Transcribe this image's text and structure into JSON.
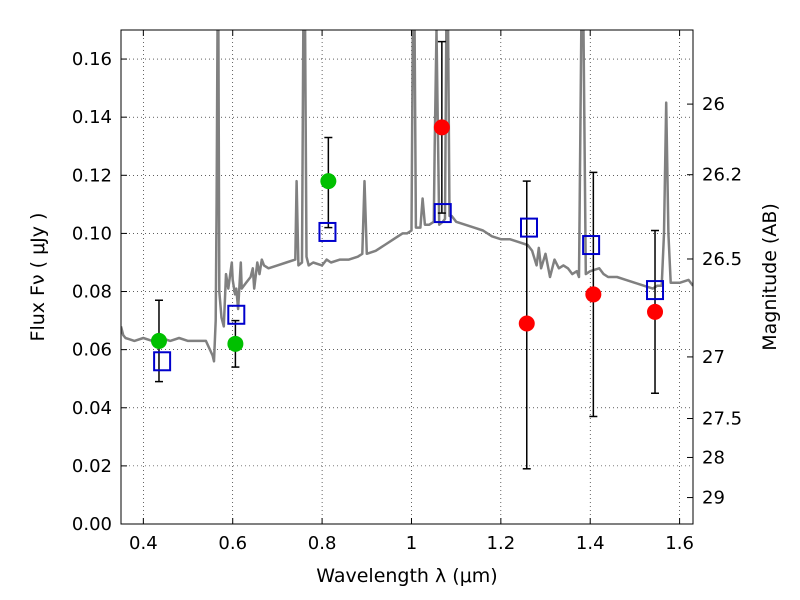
{
  "chart_data": {
    "type": "scatter",
    "xlabel": "Wavelength  λ (μm)",
    "ylabel": "Flux  Fν  ( μJy )",
    "y2label": "Magnitude (AB)",
    "xlim": [
      0.35,
      1.63
    ],
    "ylim": [
      0.0,
      0.17
    ],
    "grid": true,
    "x_ticks": [
      0.4,
      0.6,
      0.8,
      1.0,
      1.2,
      1.4,
      1.6
    ],
    "x_tick_labels": [
      "0.4",
      "0.6",
      "0.8",
      "1",
      "1.2",
      "1.4",
      "1.6"
    ],
    "y_ticks": [
      0.0,
      0.02,
      0.04,
      0.06,
      0.08,
      0.1,
      0.12,
      0.14,
      0.16
    ],
    "y_tick_labels": [
      "0.00",
      "0.02",
      "0.04",
      "0.06",
      "0.08",
      "0.10",
      "0.12",
      "0.14",
      "0.16"
    ],
    "y2_ticks": [
      {
        "label": "26",
        "flux": 0.1445
      },
      {
        "label": "26.2",
        "flux": 0.1202
      },
      {
        "label": "26.5",
        "flux": 0.0912
      },
      {
        "label": "27",
        "flux": 0.0575
      },
      {
        "label": "27.5",
        "flux": 0.0363
      },
      {
        "label": "28",
        "flux": 0.0229
      },
      {
        "label": "29",
        "flux": 0.0091
      }
    ],
    "series": [
      {
        "kind": "points_errorbars",
        "color": "#00c000",
        "points": [
          {
            "x": 0.435,
            "y": 0.063,
            "lo": 0.049,
            "hi": 0.077
          },
          {
            "x": 0.606,
            "y": 0.062,
            "lo": 0.054,
            "hi": 0.07
          },
          {
            "x": 0.814,
            "y": 0.118,
            "lo": 0.102,
            "hi": 0.133
          }
        ]
      },
      {
        "kind": "points_errorbars",
        "color": "#ff0000",
        "points": [
          {
            "x": 1.068,
            "y": 0.1365,
            "lo": 0.107,
            "hi": 0.166
          },
          {
            "x": 1.258,
            "y": 0.069,
            "lo": 0.019,
            "hi": 0.118
          },
          {
            "x": 1.407,
            "y": 0.079,
            "lo": 0.037,
            "hi": 0.121
          },
          {
            "x": 1.545,
            "y": 0.073,
            "lo": 0.045,
            "hi": 0.101
          }
        ]
      },
      {
        "kind": "model_squares",
        "color": "#0000cc",
        "points": [
          {
            "x": 0.442,
            "y": 0.056
          },
          {
            "x": 0.608,
            "y": 0.072
          },
          {
            "x": 0.812,
            "y": 0.1005
          },
          {
            "x": 1.07,
            "y": 0.107
          },
          {
            "x": 1.263,
            "y": 0.102
          },
          {
            "x": 1.402,
            "y": 0.096
          },
          {
            "x": 1.545,
            "y": 0.0805
          }
        ]
      },
      {
        "kind": "spectrum_line",
        "color": "#808080",
        "points": [
          [
            0.35,
            0.068
          ],
          [
            0.355,
            0.065
          ],
          [
            0.36,
            0.064
          ],
          [
            0.38,
            0.063
          ],
          [
            0.4,
            0.064
          ],
          [
            0.42,
            0.063
          ],
          [
            0.44,
            0.064
          ],
          [
            0.46,
            0.063
          ],
          [
            0.48,
            0.064
          ],
          [
            0.5,
            0.063
          ],
          [
            0.52,
            0.063
          ],
          [
            0.54,
            0.063
          ],
          [
            0.555,
            0.058
          ],
          [
            0.558,
            0.056
          ],
          [
            0.562,
            0.07
          ],
          [
            0.564,
            0.11
          ],
          [
            0.566,
            0.17
          ],
          [
            0.568,
            0.17
          ],
          [
            0.57,
            0.08
          ],
          [
            0.575,
            0.071
          ],
          [
            0.58,
            0.068
          ],
          [
            0.585,
            0.086
          ],
          [
            0.59,
            0.081
          ],
          [
            0.598,
            0.09
          ],
          [
            0.6,
            0.084
          ],
          [
            0.605,
            0.079
          ],
          [
            0.608,
            0.081
          ],
          [
            0.612,
            0.074
          ],
          [
            0.618,
            0.09
          ],
          [
            0.62,
            0.081
          ],
          [
            0.63,
            0.083
          ],
          [
            0.64,
            0.085
          ],
          [
            0.645,
            0.088
          ],
          [
            0.648,
            0.081
          ],
          [
            0.655,
            0.09
          ],
          [
            0.66,
            0.086
          ],
          [
            0.665,
            0.091
          ],
          [
            0.67,
            0.089
          ],
          [
            0.68,
            0.088
          ],
          [
            0.7,
            0.089
          ],
          [
            0.72,
            0.09
          ],
          [
            0.74,
            0.091
          ],
          [
            0.743,
            0.118
          ],
          [
            0.747,
            0.089
          ],
          [
            0.755,
            0.09
          ],
          [
            0.758,
            0.17
          ],
          [
            0.762,
            0.17
          ],
          [
            0.765,
            0.092
          ],
          [
            0.77,
            0.089
          ],
          [
            0.78,
            0.09
          ],
          [
            0.8,
            0.089
          ],
          [
            0.81,
            0.091
          ],
          [
            0.82,
            0.09
          ],
          [
            0.84,
            0.091
          ],
          [
            0.86,
            0.091
          ],
          [
            0.88,
            0.092
          ],
          [
            0.89,
            0.093
          ],
          [
            0.895,
            0.118
          ],
          [
            0.9,
            0.093
          ],
          [
            0.92,
            0.094
          ],
          [
            0.94,
            0.096
          ],
          [
            0.96,
            0.098
          ],
          [
            0.98,
            0.1
          ],
          [
            0.99,
            0.1
          ],
          [
            1.0,
            0.101
          ],
          [
            1.003,
            0.17
          ],
          [
            1.007,
            0.17
          ],
          [
            1.01,
            0.102
          ],
          [
            1.02,
            0.102
          ],
          [
            1.025,
            0.112
          ],
          [
            1.03,
            0.103
          ],
          [
            1.04,
            0.103
          ],
          [
            1.05,
            0.104
          ],
          [
            1.052,
            0.13
          ],
          [
            1.056,
            0.17
          ],
          [
            1.062,
            0.103
          ],
          [
            1.07,
            0.104
          ],
          [
            1.075,
            0.105
          ],
          [
            1.078,
            0.17
          ],
          [
            1.082,
            0.17
          ],
          [
            1.085,
            0.106
          ],
          [
            1.09,
            0.106
          ],
          [
            1.1,
            0.104
          ],
          [
            1.12,
            0.103
          ],
          [
            1.14,
            0.102
          ],
          [
            1.16,
            0.101
          ],
          [
            1.18,
            0.099
          ],
          [
            1.2,
            0.098
          ],
          [
            1.22,
            0.098
          ],
          [
            1.24,
            0.097
          ],
          [
            1.26,
            0.096
          ],
          [
            1.27,
            0.094
          ],
          [
            1.28,
            0.089
          ],
          [
            1.285,
            0.095
          ],
          [
            1.29,
            0.088
          ],
          [
            1.3,
            0.093
          ],
          [
            1.31,
            0.085
          ],
          [
            1.32,
            0.091
          ],
          [
            1.33,
            0.088
          ],
          [
            1.34,
            0.089
          ],
          [
            1.35,
            0.088
          ],
          [
            1.36,
            0.086
          ],
          [
            1.37,
            0.087
          ],
          [
            1.375,
            0.085
          ],
          [
            1.38,
            0.17
          ],
          [
            1.385,
            0.17
          ],
          [
            1.39,
            0.086
          ],
          [
            1.4,
            0.087
          ],
          [
            1.42,
            0.088
          ],
          [
            1.43,
            0.086
          ],
          [
            1.44,
            0.085
          ],
          [
            1.46,
            0.085
          ],
          [
            1.48,
            0.084
          ],
          [
            1.5,
            0.083
          ],
          [
            1.52,
            0.082
          ],
          [
            1.54,
            0.081
          ],
          [
            1.55,
            0.082
          ],
          [
            1.56,
            0.082
          ],
          [
            1.565,
            0.1
          ],
          [
            1.57,
            0.145
          ],
          [
            1.575,
            0.1
          ],
          [
            1.58,
            0.083
          ],
          [
            1.6,
            0.083
          ],
          [
            1.62,
            0.084
          ],
          [
            1.63,
            0.082
          ]
        ]
      }
    ]
  }
}
